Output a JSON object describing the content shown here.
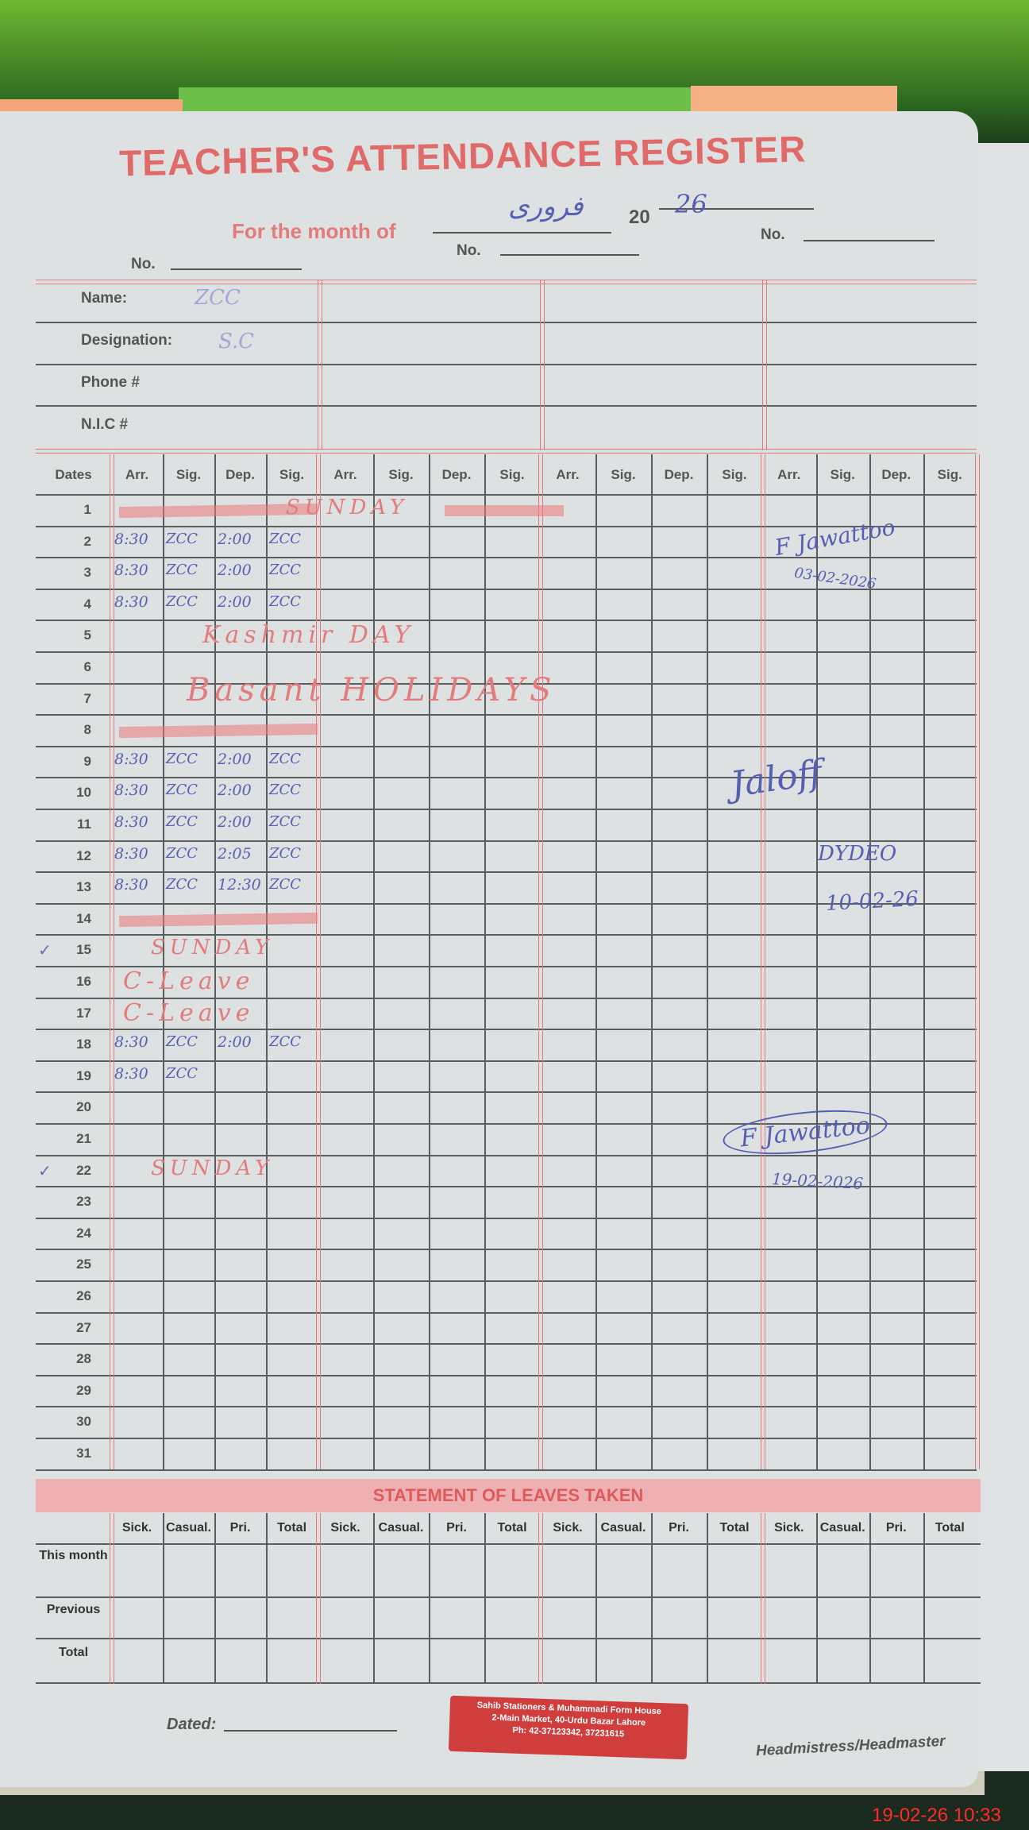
{
  "header": {
    "title": "TEACHER'S ATTENDANCE REGISTER",
    "month_label": "For the month of",
    "month_value": "فروری",
    "year_prefix": "20",
    "year_value": "26",
    "no_label": "No."
  },
  "info": {
    "labels": [
      "Name:",
      "Designation:",
      "Phone #",
      "N.I.C #"
    ],
    "name_value": "ZCC",
    "designation_value": "S.C"
  },
  "table": {
    "dates_label": "Dates",
    "columns": [
      "Arr.",
      "Sig.",
      "Dep.",
      "Sig."
    ],
    "rows": [
      {
        "date": "1",
        "note": "SUNDAY",
        "crossed": true
      },
      {
        "date": "2",
        "arr": "8:30",
        "sig": "ZCC",
        "dep": "2:00",
        "sig2": "ZCC"
      },
      {
        "date": "3",
        "arr": "8:30",
        "sig": "ZCC",
        "dep": "2:00",
        "sig2": "ZCC"
      },
      {
        "date": "4",
        "arr": "8:30",
        "sig": "ZCC",
        "dep": "2:00",
        "sig2": "ZCC"
      },
      {
        "date": "5",
        "note": "Kashmir DAY"
      },
      {
        "date": "6"
      },
      {
        "date": "7",
        "note": "Basant HOLIDAYS"
      },
      {
        "date": "8",
        "crossed": true
      },
      {
        "date": "9",
        "arr": "8:30",
        "sig": "ZCC",
        "dep": "2:00",
        "sig2": "ZCC"
      },
      {
        "date": "10",
        "arr": "8:30",
        "sig": "ZCC",
        "dep": "2:00",
        "sig2": "ZCC"
      },
      {
        "date": "11",
        "arr": "8:30",
        "sig": "ZCC",
        "dep": "2:00",
        "sig2": "ZCC"
      },
      {
        "date": "12",
        "arr": "8:30",
        "sig": "ZCC",
        "dep": "2:05",
        "sig2": "ZCC"
      },
      {
        "date": "13",
        "arr": "8:30",
        "sig": "ZCC",
        "dep": "12:30",
        "sig2": "ZCC"
      },
      {
        "date": "14",
        "crossed": true
      },
      {
        "date": "15",
        "note": "SUNDAY",
        "check": "✓"
      },
      {
        "date": "16",
        "note": "C-Leave"
      },
      {
        "date": "17",
        "note": "C-Leave"
      },
      {
        "date": "18",
        "arr": "8:30",
        "sig": "ZCC",
        "dep": "2:00",
        "sig2": "ZCC"
      },
      {
        "date": "19",
        "arr": "8:30",
        "sig": "ZCC"
      },
      {
        "date": "20"
      },
      {
        "date": "21"
      },
      {
        "date": "22",
        "note": "SUNDAY",
        "check": "✓"
      },
      {
        "date": "23"
      },
      {
        "date": "24"
      },
      {
        "date": "25"
      },
      {
        "date": "26"
      },
      {
        "date": "27"
      },
      {
        "date": "28"
      },
      {
        "date": "29"
      },
      {
        "date": "30"
      },
      {
        "date": "31"
      }
    ],
    "remarks": [
      {
        "signature": "F Jawattoo",
        "date": "03-02-2026"
      },
      {
        "signature": "Jaloff",
        "title": "DYDEO",
        "date": "10-02-26"
      },
      {
        "signature": "F Jawattoo",
        "date": "19-02-2026"
      }
    ]
  },
  "leaves": {
    "title": "STATEMENT OF LEAVES TAKEN",
    "columns": [
      "Sick.",
      "Casual.",
      "Pri.",
      "Total"
    ],
    "row_labels": [
      "This month",
      "Previous",
      "Total"
    ]
  },
  "footer": {
    "dated_label": "Dated:",
    "stamp_lines": [
      "Sahib Stationers & Muhammadi Form House",
      "2-Main Market, 40-Urdu Bazar Lahore",
      "Ph: 42-37123342, 37231615"
    ],
    "signatory": "Headmistress/Headmaster"
  },
  "photo_timestamp": "19-02-26  10:33",
  "colors": {
    "print_red": "#e06a6a",
    "ink_blue": "#5560b5",
    "grid": "#5a5d5d",
    "paper": "#dde1e1"
  }
}
